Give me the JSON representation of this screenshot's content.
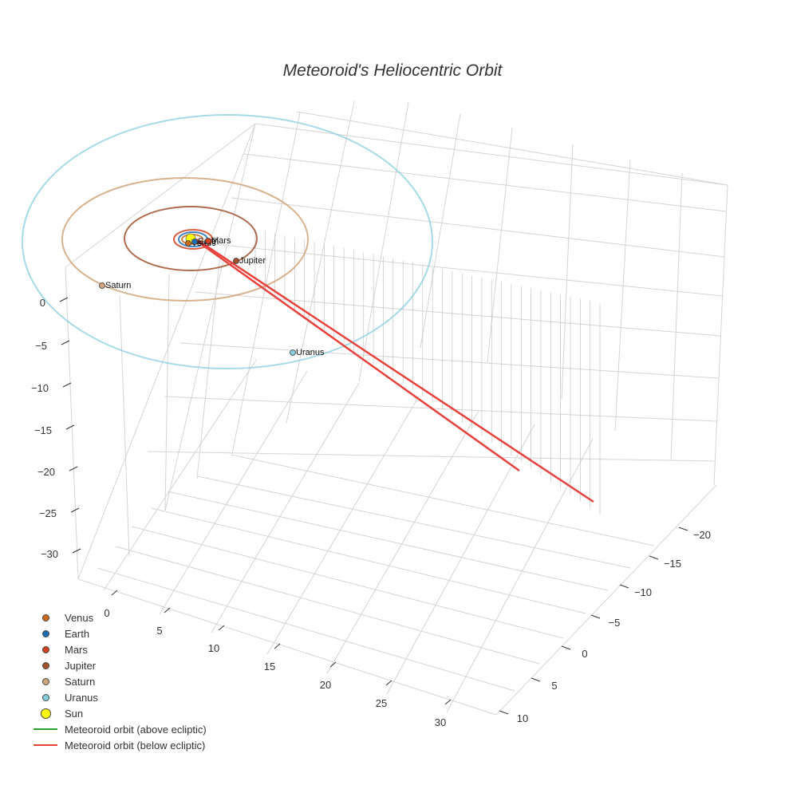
{
  "chart_data": {
    "type": "scatter3d",
    "title": "Meteoroid's Heliocentric Orbit",
    "axes": {
      "z": {
        "ticks": [
          0,
          -5,
          -10,
          -15,
          -20,
          -25,
          -30
        ],
        "range": [
          -33,
          3
        ]
      },
      "x": {
        "ticks": [
          0,
          5,
          10,
          15,
          20,
          25,
          30
        ],
        "range": [
          -2,
          33
        ]
      },
      "y": {
        "ticks": [
          -20,
          -15,
          -10,
          -5,
          0,
          5,
          10
        ],
        "range": [
          -23,
          12
        ]
      }
    },
    "series": [
      {
        "name": "Venus",
        "type": "planet",
        "color": "#c96a1e",
        "a_au": 0.72
      },
      {
        "name": "Earth",
        "type": "planet",
        "color": "#1f6fb4",
        "a_au": 1.0
      },
      {
        "name": "Mars",
        "type": "planet",
        "color": "#d2411f",
        "a_au": 1.52
      },
      {
        "name": "Jupiter",
        "type": "planet",
        "color": "#a0522d",
        "a_au": 5.2
      },
      {
        "name": "Saturn",
        "type": "planet",
        "color": "#d2a57a",
        "a_au": 9.54
      },
      {
        "name": "Uranus",
        "type": "planet",
        "color": "#87cedf",
        "a_au": 19.2
      },
      {
        "name": "Sun",
        "type": "star",
        "color": "#ffff00"
      },
      {
        "name": "Meteoroid orbit (above ecliptic)",
        "type": "line",
        "color": "#2ca02c"
      },
      {
        "name": "Meteoroid orbit (below ecliptic)",
        "type": "line",
        "color": "#e8413b"
      }
    ],
    "planet_labels": [
      {
        "name": "Venus",
        "text": "Venus"
      },
      {
        "name": "Earth",
        "text": "Earth"
      },
      {
        "name": "Mars",
        "text": "Mars"
      },
      {
        "name": "Jupiter",
        "text": "Jupiter"
      },
      {
        "name": "Saturn",
        "text": "Saturn"
      },
      {
        "name": "Uranus",
        "text": "Uranus"
      }
    ],
    "meteoroid_path": {
      "description": "narrow loop extending from inner solar system toward +x, -y, below ecliptic"
    }
  }
}
